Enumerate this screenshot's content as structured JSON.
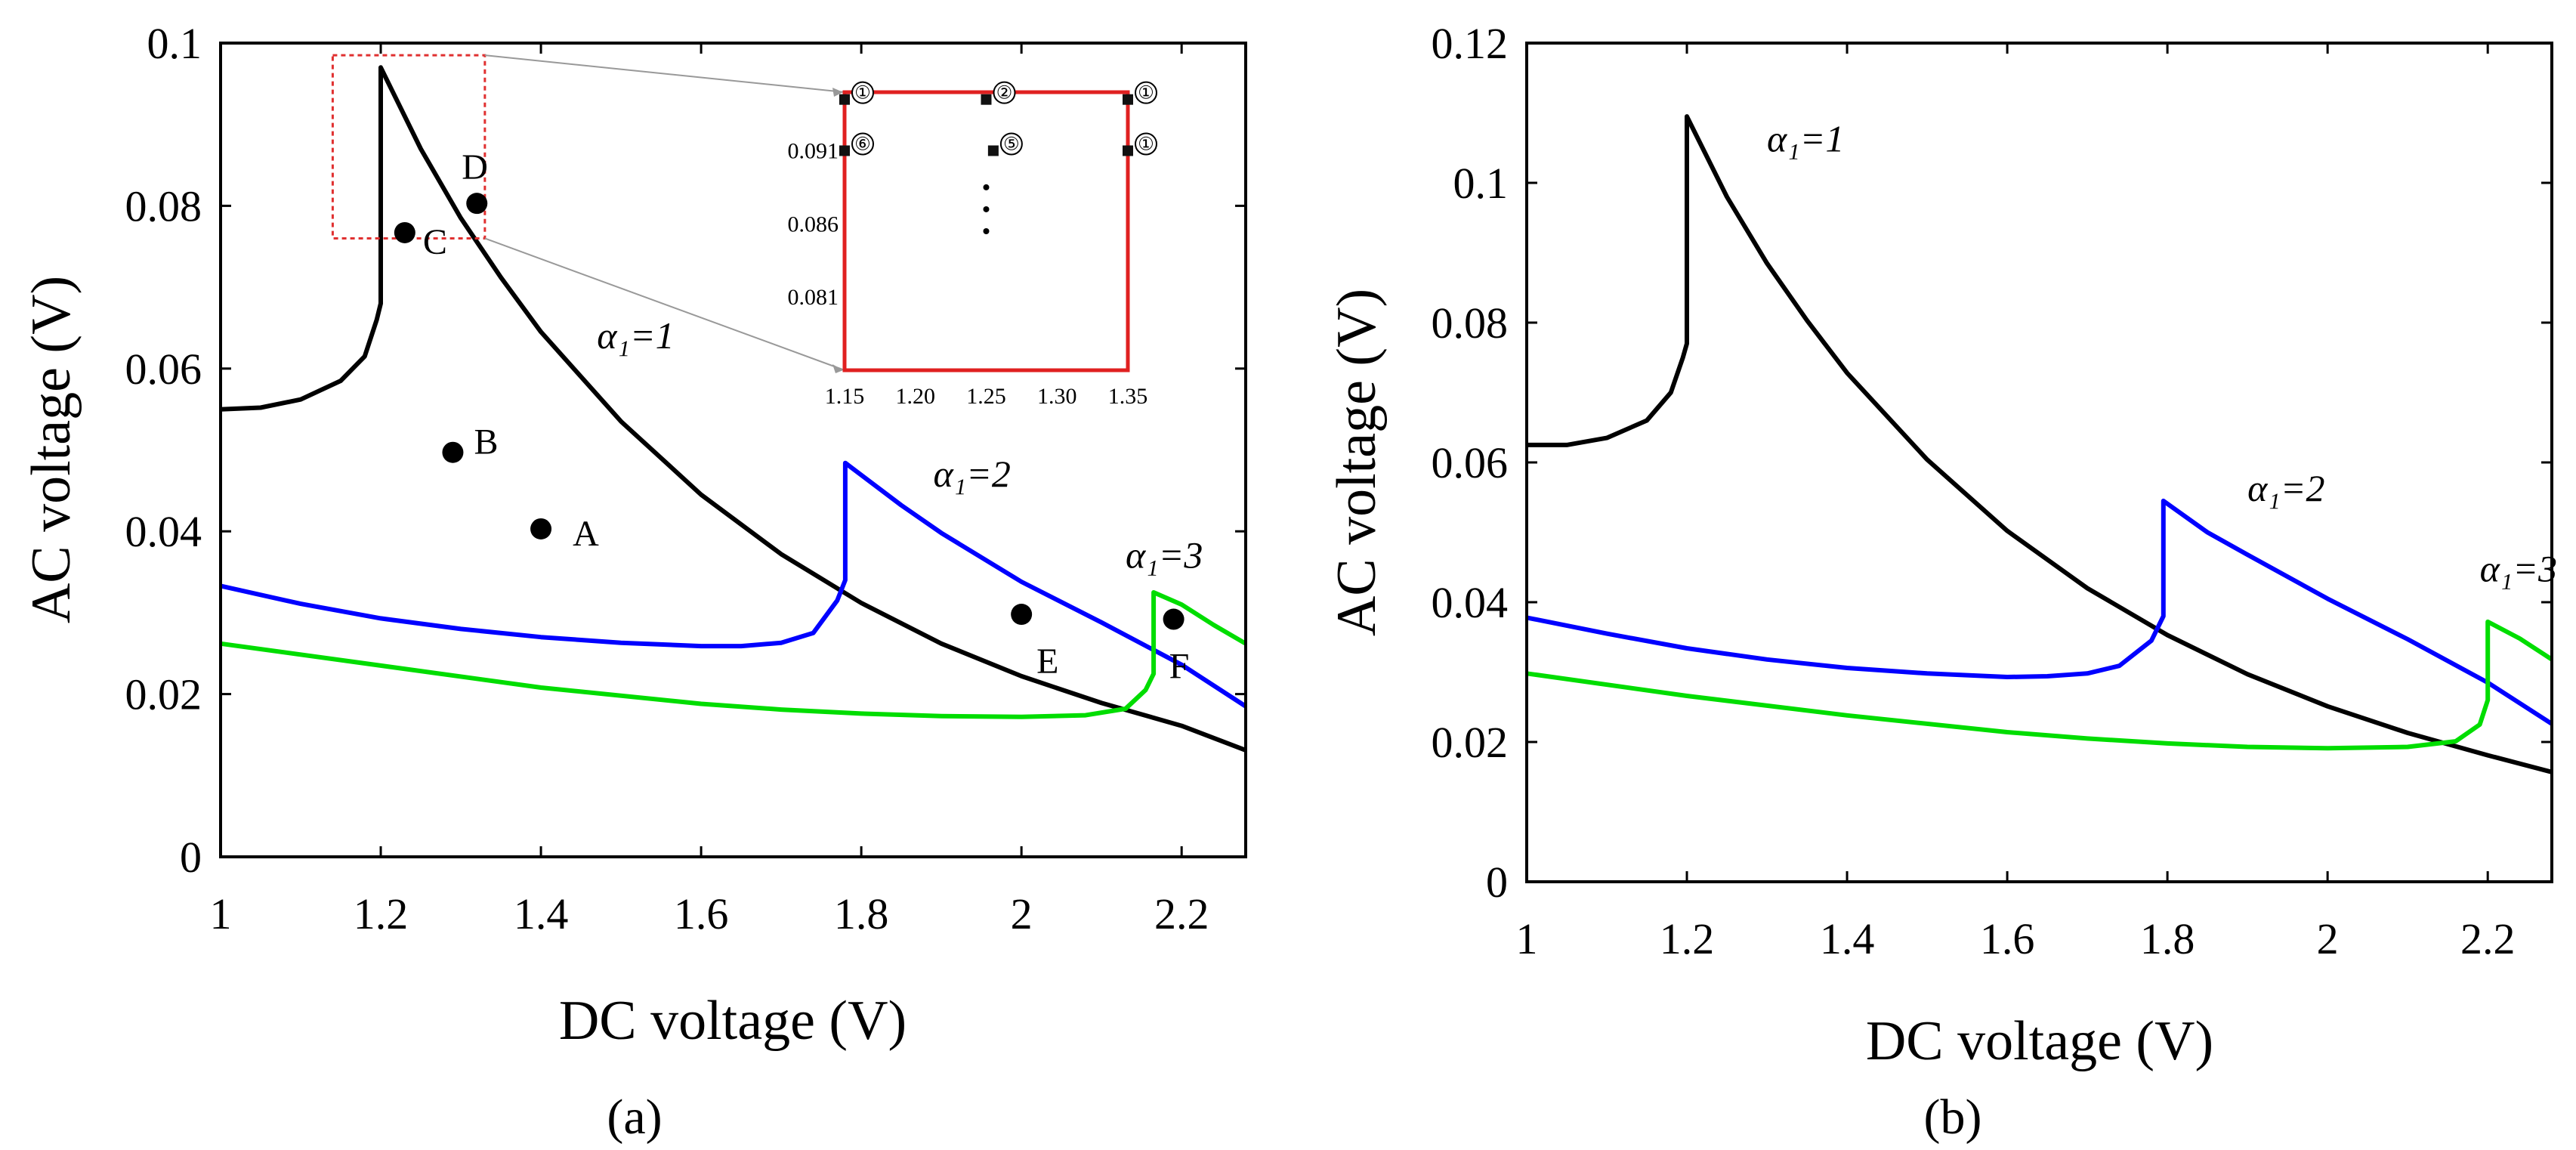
{
  "figure": {
    "caption_a": "(a)",
    "caption_b": "(b)"
  },
  "chart_data": [
    {
      "type": "line",
      "title": "",
      "xlabel": "DC voltage (V)",
      "ylabel": "AC voltage (V)",
      "xlim": [
        1,
        2.28
      ],
      "ylim": [
        0,
        0.1
      ],
      "xticks": [
        1,
        1.2,
        1.4,
        1.6,
        1.8,
        2,
        2.2
      ],
      "xtick_labels": [
        "1",
        "1.2",
        "1.4",
        "1.6",
        "1.8",
        "2",
        "2.2"
      ],
      "yticks": [
        0,
        0.02,
        0.04,
        0.06,
        0.08,
        0.1
      ],
      "ytick_labels": [
        "0",
        "0.02",
        "0.04",
        "0.06",
        "0.08",
        "0.1"
      ],
      "series": [
        {
          "name": "α₁=1",
          "color": "#000000",
          "x": [
            1.0,
            1.05,
            1.1,
            1.15,
            1.18,
            1.195,
            1.2,
            1.2,
            1.25,
            1.3,
            1.35,
            1.4,
            1.5,
            1.6,
            1.7,
            1.8,
            1.9,
            2.0,
            2.1,
            2.2,
            2.28
          ],
          "y": [
            0.055,
            0.0552,
            0.0562,
            0.0585,
            0.0615,
            0.066,
            0.068,
            0.097,
            0.087,
            0.0785,
            0.0712,
            0.0645,
            0.0535,
            0.0445,
            0.0372,
            0.0312,
            0.0262,
            0.0222,
            0.0189,
            0.0161,
            0.0131
          ]
        },
        {
          "name": "α₁=2",
          "color": "#0000ff",
          "x": [
            1.0,
            1.1,
            1.2,
            1.3,
            1.4,
            1.5,
            1.6,
            1.65,
            1.7,
            1.74,
            1.77,
            1.78,
            1.78,
            1.85,
            1.9,
            2.0,
            2.1,
            2.2,
            2.28
          ],
          "y": [
            0.0333,
            0.0311,
            0.0293,
            0.028,
            0.027,
            0.0263,
            0.0259,
            0.0259,
            0.0263,
            0.0275,
            0.0315,
            0.034,
            0.0484,
            0.0432,
            0.0398,
            0.0338,
            0.0288,
            0.0236,
            0.0185
          ]
        },
        {
          "name": "α₁=3",
          "color": "#00dd00",
          "x": [
            1.0,
            1.2,
            1.4,
            1.6,
            1.7,
            1.8,
            1.9,
            2.0,
            2.08,
            2.13,
            2.155,
            2.165,
            2.165,
            2.2,
            2.24,
            2.28
          ],
          "y": [
            0.0262,
            0.0235,
            0.0208,
            0.0188,
            0.0181,
            0.0176,
            0.0173,
            0.0172,
            0.0174,
            0.0182,
            0.0205,
            0.0225,
            0.0325,
            0.031,
            0.0285,
            0.0262
          ]
        }
      ],
      "points": [
        {
          "label": "A",
          "x": 1.4,
          "y": 0.0403
        },
        {
          "label": "B",
          "x": 1.29,
          "y": 0.0497
        },
        {
          "label": "C",
          "x": 1.23,
          "y": 0.0767
        },
        {
          "label": "D",
          "x": 1.32,
          "y": 0.0803
        },
        {
          "label": "E",
          "x": 2.0,
          "y": 0.0298
        },
        {
          "label": "F",
          "x": 2.19,
          "y": 0.0292
        }
      ],
      "curve_labels": [
        {
          "text": "α₁=1",
          "x": 1.47,
          "y": 0.0625
        },
        {
          "text": "α₁=2",
          "x": 1.89,
          "y": 0.0455
        },
        {
          "text": "α₁=3",
          "x": 2.13,
          "y": 0.0355
        }
      ],
      "zoom_box": {
        "xlim": [
          1.14,
          1.33
        ],
        "ylim": [
          0.076,
          0.0985
        ]
      },
      "inset": {
        "xlim": [
          1.15,
          1.35
        ],
        "ylim": [
          0.076,
          0.095
        ],
        "xticks": [
          1.15,
          1.2,
          1.25,
          1.3,
          1.35
        ],
        "xtick_labels": [
          "1.15",
          "1.20",
          "1.25",
          "1.30",
          "1.35"
        ],
        "yticks": [
          0.081,
          0.086,
          0.091
        ],
        "ytick_labels": [
          "0.081",
          "0.086",
          "0.091"
        ],
        "markers": [
          {
            "label": "①",
            "x": 1.15,
            "y": 0.0945
          },
          {
            "label": "②",
            "x": 1.25,
            "y": 0.0945
          },
          {
            "label": "①",
            "x": 1.35,
            "y": 0.0945
          },
          {
            "label": "⑥",
            "x": 1.15,
            "y": 0.091
          },
          {
            "label": "⑤",
            "x": 1.255,
            "y": 0.091
          },
          {
            "label": "①",
            "x": 1.35,
            "y": 0.091
          }
        ],
        "ellipsis_dots": [
          {
            "x": 1.25,
            "y": 0.0885
          },
          {
            "x": 1.25,
            "y": 0.087
          },
          {
            "x": 1.25,
            "y": 0.0855
          }
        ]
      }
    },
    {
      "type": "line",
      "title": "",
      "xlabel": "DC voltage (V)",
      "ylabel": "AC voltage (V)",
      "xlim": [
        1,
        2.28
      ],
      "ylim": [
        0,
        0.12
      ],
      "xticks": [
        1,
        1.2,
        1.4,
        1.6,
        1.8,
        2,
        2.2
      ],
      "xtick_labels": [
        "1",
        "1.2",
        "1.4",
        "1.6",
        "1.8",
        "2",
        "2.2"
      ],
      "yticks": [
        0,
        0.02,
        0.04,
        0.06,
        0.08,
        0.1,
        0.12
      ],
      "ytick_labels": [
        "0",
        "0.02",
        "0.04",
        "0.06",
        "0.08",
        "0.1",
        "0.12"
      ],
      "series": [
        {
          "name": "α₁=1",
          "color": "#000000",
          "x": [
            1.0,
            1.05,
            1.1,
            1.15,
            1.18,
            1.195,
            1.2,
            1.2,
            1.25,
            1.3,
            1.35,
            1.4,
            1.5,
            1.6,
            1.7,
            1.8,
            1.9,
            2.0,
            2.1,
            2.2,
            2.28
          ],
          "y": [
            0.0625,
            0.0625,
            0.0635,
            0.066,
            0.07,
            0.075,
            0.077,
            0.1095,
            0.098,
            0.0885,
            0.0803,
            0.0728,
            0.0604,
            0.0502,
            0.042,
            0.0353,
            0.0297,
            0.0251,
            0.0213,
            0.0181,
            0.0157
          ]
        },
        {
          "name": "α₁=2",
          "color": "#0000ff",
          "x": [
            1.0,
            1.1,
            1.2,
            1.3,
            1.4,
            1.5,
            1.6,
            1.65,
            1.7,
            1.74,
            1.78,
            1.795,
            1.795,
            1.85,
            1.9,
            2.0,
            2.1,
            2.2,
            2.28
          ],
          "y": [
            0.0378,
            0.0355,
            0.0334,
            0.0318,
            0.0306,
            0.0298,
            0.0293,
            0.0294,
            0.0298,
            0.0309,
            0.0345,
            0.038,
            0.0545,
            0.05,
            0.0468,
            0.0405,
            0.0347,
            0.0285,
            0.0226
          ]
        },
        {
          "name": "α₁=3",
          "color": "#00dd00",
          "x": [
            1.0,
            1.2,
            1.4,
            1.6,
            1.7,
            1.8,
            1.9,
            2.0,
            2.1,
            2.16,
            2.19,
            2.2,
            2.2,
            2.24,
            2.28
          ],
          "y": [
            0.0298,
            0.0266,
            0.0238,
            0.0214,
            0.0205,
            0.0198,
            0.0193,
            0.0191,
            0.0193,
            0.0201,
            0.0225,
            0.026,
            0.0372,
            0.0348,
            0.0318
          ]
        }
      ],
      "points": [],
      "curve_labels": [
        {
          "text": "α₁=1",
          "x": 1.3,
          "y": 0.1045
        },
        {
          "text": "α₁=2",
          "x": 1.9,
          "y": 0.0545
        },
        {
          "text": "α₁=3",
          "x": 2.19,
          "y": 0.043
        }
      ]
    }
  ]
}
